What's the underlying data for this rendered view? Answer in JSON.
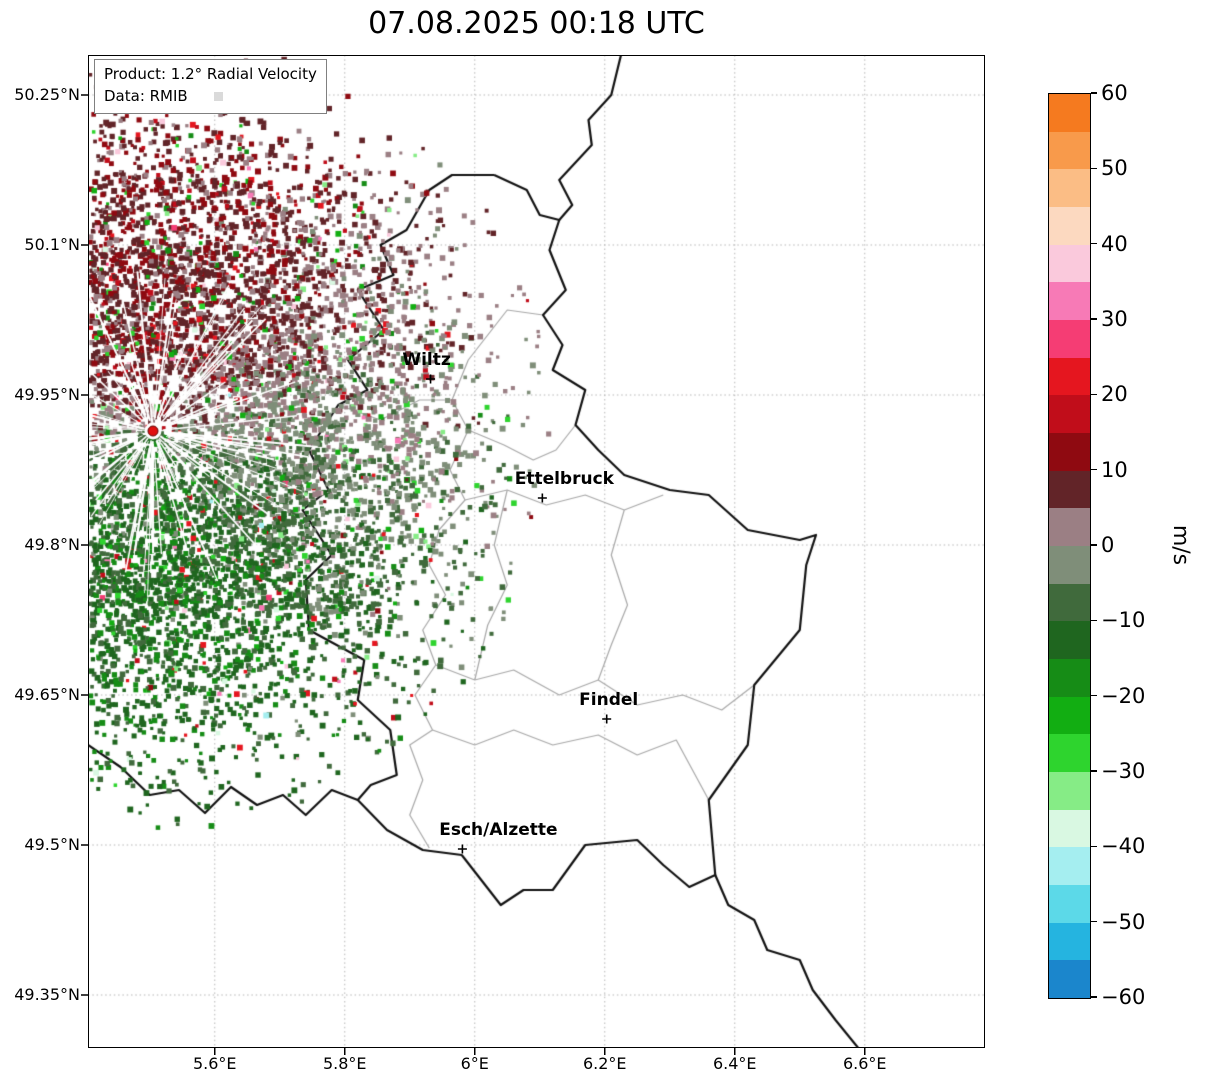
{
  "title": "07.08.2025 00:18 UTC",
  "info_box": {
    "product": "Product: 1.2° Radial Velocity",
    "data_source": "Data: RMIB"
  },
  "chart_data": {
    "type": "map",
    "subtype": "doppler-radar-radial-velocity",
    "title": "07.08.2025 00:18 UTC",
    "product": "1.2° Radial Velocity",
    "data_provider": "RMIB",
    "units": "m/s",
    "lon_axis": {
      "range": [
        5.405,
        6.785
      ],
      "ticks": [
        5.6,
        5.8,
        6.0,
        6.2,
        6.4,
        6.6
      ],
      "tick_labels": [
        "5.6°E",
        "5.8°E",
        "6°E",
        "6.2°E",
        "6.4°E",
        "6.6°E"
      ]
    },
    "lat_axis": {
      "range": [
        49.297,
        50.29
      ],
      "ticks": [
        50.25,
        50.1,
        49.95,
        49.8,
        49.65,
        49.5,
        49.35
      ],
      "tick_labels": [
        "50.25°N",
        "50.1°N",
        "49.95°N",
        "49.8°N",
        "49.65°N",
        "49.5°N",
        "49.35°N"
      ]
    },
    "colorbar": {
      "label": "m/s",
      "min": -60,
      "max": 60,
      "ticks": [
        60,
        50,
        40,
        30,
        20,
        10,
        0,
        -10,
        -20,
        -30,
        -40,
        -50,
        -60
      ],
      "tick_labels": [
        "60",
        "50",
        "40",
        "30",
        "20",
        "10",
        "0",
        "−10",
        "−20",
        "−30",
        "−40",
        "−50",
        "−60"
      ],
      "segment_step": 5,
      "segment_colors_top_to_bottom": [
        "#f57a1f",
        "#f89a4b",
        "#fbbd85",
        "#fcd9c0",
        "#fac9dc",
        "#f77ab6",
        "#f53d74",
        "#e5161f",
        "#c10d1a",
        "#8f0a11",
        "#622428",
        "#9b7f84",
        "#7f8e79",
        "#406a3c",
        "#1f661f",
        "#168c16",
        "#12ae12",
        "#2ed42e",
        "#86ec86",
        "#d9f8e2",
        "#a5eef0",
        "#5cd9e8",
        "#25b4e0",
        "#1b86cc"
      ]
    },
    "cities": [
      {
        "name": "Wiltz",
        "lon": 5.932,
        "lat": 49.966,
        "label_dx": -4
      },
      {
        "name": "Ettelbruck",
        "lon": 6.104,
        "lat": 49.847,
        "label_dx": 22
      },
      {
        "name": "Findel",
        "lon": 6.203,
        "lat": 49.626,
        "label_dx": 2
      },
      {
        "name": "Esch/Alzette",
        "lon": 5.981,
        "lat": 49.496,
        "label_dx": 36
      }
    ],
    "radar_site": {
      "lon": 5.505,
      "lat": 49.914,
      "dot_color": "#e01010"
    },
    "field_summary": {
      "pattern": "positive (red/maroon) radial velocities north of radar, negative (green) south of radar, grey near zero to the east; scattered bright green and pink outliers",
      "north_sector_velocity_ms": 9,
      "south_sector_velocity_ms": -12
    }
  },
  "map": {
    "country_borders": [
      [
        [
          6.03,
          50.17
        ],
        [
          6.08,
          50.155
        ],
        [
          6.1,
          50.13
        ],
        [
          6.13,
          50.125
        ],
        [
          6.115,
          50.095
        ],
        [
          6.14,
          50.055
        ],
        [
          6.105,
          50.03
        ],
        [
          6.135,
          50.0
        ],
        [
          6.12,
          49.975
        ],
        [
          6.17,
          49.955
        ],
        [
          6.155,
          49.92
        ],
        [
          6.19,
          49.895
        ],
        [
          6.23,
          49.87
        ],
        [
          6.3,
          49.855
        ],
        [
          6.36,
          49.85
        ],
        [
          6.42,
          49.815
        ],
        [
          6.5,
          49.805
        ],
        [
          6.525,
          49.81
        ],
        [
          6.51,
          49.78
        ],
        [
          6.5,
          49.715
        ],
        [
          6.43,
          49.66
        ],
        [
          6.42,
          49.6
        ],
        [
          6.36,
          49.545
        ],
        [
          6.37,
          49.47
        ],
        [
          6.33,
          49.458
        ],
        [
          6.29,
          49.48
        ],
        [
          6.25,
          49.505
        ],
        [
          6.17,
          49.5
        ],
        [
          6.12,
          49.455
        ],
        [
          6.075,
          49.455
        ],
        [
          6.04,
          49.44
        ],
        [
          5.98,
          49.49
        ],
        [
          5.92,
          49.495
        ],
        [
          5.865,
          49.515
        ],
        [
          5.82,
          49.545
        ],
        [
          5.84,
          49.56
        ],
        [
          5.88,
          49.57
        ],
        [
          5.87,
          49.615
        ],
        [
          5.82,
          49.645
        ],
        [
          5.83,
          49.685
        ],
        [
          5.745,
          49.715
        ],
        [
          5.74,
          49.765
        ],
        [
          5.78,
          49.79
        ],
        [
          5.735,
          49.835
        ],
        [
          5.775,
          49.855
        ],
        [
          5.745,
          49.895
        ],
        [
          5.79,
          49.94
        ],
        [
          5.835,
          49.955
        ],
        [
          5.805,
          49.985
        ],
        [
          5.86,
          50.015
        ],
        [
          5.82,
          50.055
        ],
        [
          5.875,
          50.07
        ],
        [
          5.855,
          50.1
        ],
        [
          5.895,
          50.115
        ],
        [
          5.93,
          50.155
        ],
        [
          5.965,
          50.17
        ],
        [
          6.03,
          50.17
        ]
      ],
      [
        [
          6.13,
          50.125
        ],
        [
          6.15,
          50.14
        ],
        [
          6.13,
          50.165
        ],
        [
          6.18,
          50.2
        ],
        [
          6.175,
          50.225
        ],
        [
          6.21,
          50.25
        ],
        [
          6.225,
          50.29
        ]
      ],
      [
        [
          6.37,
          49.47
        ],
        [
          6.39,
          49.44
        ],
        [
          6.43,
          49.425
        ],
        [
          6.45,
          49.395
        ],
        [
          6.5,
          49.385
        ],
        [
          6.52,
          49.355
        ],
        [
          6.555,
          49.325
        ],
        [
          6.59,
          49.297
        ]
      ],
      [
        [
          5.82,
          49.545
        ],
        [
          5.78,
          49.555
        ],
        [
          5.74,
          49.53
        ],
        [
          5.705,
          49.55
        ],
        [
          5.665,
          49.54
        ],
        [
          5.625,
          49.558
        ],
        [
          5.585,
          49.532
        ],
        [
          5.545,
          49.555
        ],
        [
          5.5,
          49.55
        ],
        [
          5.455,
          49.578
        ],
        [
          5.405,
          49.6
        ]
      ]
    ],
    "region_borders": [
      [
        [
          6.105,
          50.03
        ],
        [
          6.05,
          50.035
        ],
        [
          5.99,
          49.985
        ],
        [
          5.965,
          49.945
        ],
        [
          5.99,
          49.915
        ],
        [
          5.962,
          49.875
        ],
        [
          5.985,
          49.845
        ],
        [
          5.945,
          49.815
        ],
        [
          5.93,
          49.78
        ],
        [
          5.955,
          49.75
        ],
        [
          5.92,
          49.715
        ],
        [
          5.94,
          49.68
        ],
        [
          5.908,
          49.65
        ],
        [
          5.935,
          49.615
        ],
        [
          5.9,
          49.6
        ],
        [
          5.92,
          49.565
        ],
        [
          5.9,
          49.53
        ],
        [
          5.93,
          49.497
        ]
      ],
      [
        [
          5.79,
          49.94
        ],
        [
          5.855,
          49.925
        ],
        [
          5.915,
          49.945
        ],
        [
          5.965,
          49.945
        ]
      ],
      [
        [
          5.99,
          49.915
        ],
        [
          6.045,
          49.9
        ],
        [
          6.09,
          49.885
        ],
        [
          6.125,
          49.895
        ],
        [
          6.155,
          49.92
        ]
      ],
      [
        [
          5.985,
          49.845
        ],
        [
          6.05,
          49.855
        ],
        [
          6.11,
          49.84
        ],
        [
          6.17,
          49.85
        ],
        [
          6.23,
          49.835
        ],
        [
          6.29,
          49.85
        ]
      ],
      [
        [
          5.94,
          49.68
        ],
        [
          6.0,
          49.665
        ],
        [
          6.06,
          49.675
        ],
        [
          6.13,
          49.65
        ],
        [
          6.19,
          49.665
        ],
        [
          6.25,
          49.64
        ],
        [
          6.32,
          49.65
        ],
        [
          6.38,
          49.635
        ],
        [
          6.43,
          49.66
        ]
      ],
      [
        [
          5.935,
          49.615
        ],
        [
          6.0,
          49.6
        ],
        [
          6.06,
          49.615
        ],
        [
          6.12,
          49.6
        ],
        [
          6.19,
          49.61
        ],
        [
          6.25,
          49.59
        ],
        [
          6.31,
          49.605
        ],
        [
          6.36,
          49.545
        ]
      ],
      [
        [
          6.23,
          49.835
        ],
        [
          6.21,
          49.79
        ],
        [
          6.235,
          49.74
        ],
        [
          6.21,
          49.7
        ],
        [
          6.19,
          49.665
        ]
      ],
      [
        [
          6.05,
          49.855
        ],
        [
          6.03,
          49.8
        ],
        [
          6.05,
          49.76
        ],
        [
          6.02,
          49.72
        ],
        [
          6.0,
          49.665
        ]
      ]
    ]
  }
}
